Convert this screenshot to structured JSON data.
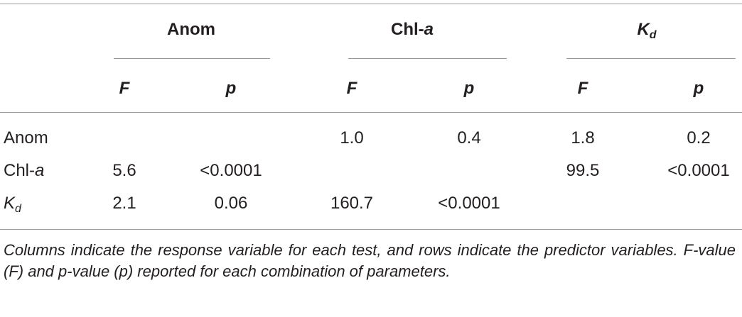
{
  "table": {
    "column_groups": [
      "Anom",
      {
        "text": "Chl-",
        "italic": "a"
      },
      {
        "italic": "K",
        "subscript": "d"
      }
    ],
    "subheaders": [
      "F",
      "p",
      "F",
      "p",
      "F",
      "p"
    ],
    "rows": [
      {
        "label": "Anom",
        "cells": [
          null,
          null,
          "1.0",
          "0.4",
          "1.8",
          "0.2"
        ]
      },
      {
        "label": {
          "text": "Chl-",
          "italic": "a"
        },
        "cells": [
          "5.6",
          "<0.0001",
          null,
          null,
          "99.5",
          "<0.0001"
        ]
      },
      {
        "label": {
          "italic": "K",
          "subscript": "d"
        },
        "cells": [
          "2.1",
          "0.06",
          "160.7",
          "<0.0001",
          null,
          null
        ]
      }
    ]
  },
  "caption": "Columns indicate the response variable for each test, and rows indicate the predictor variables. F-value (F) and p-value (p) reported for each combination of parameters."
}
